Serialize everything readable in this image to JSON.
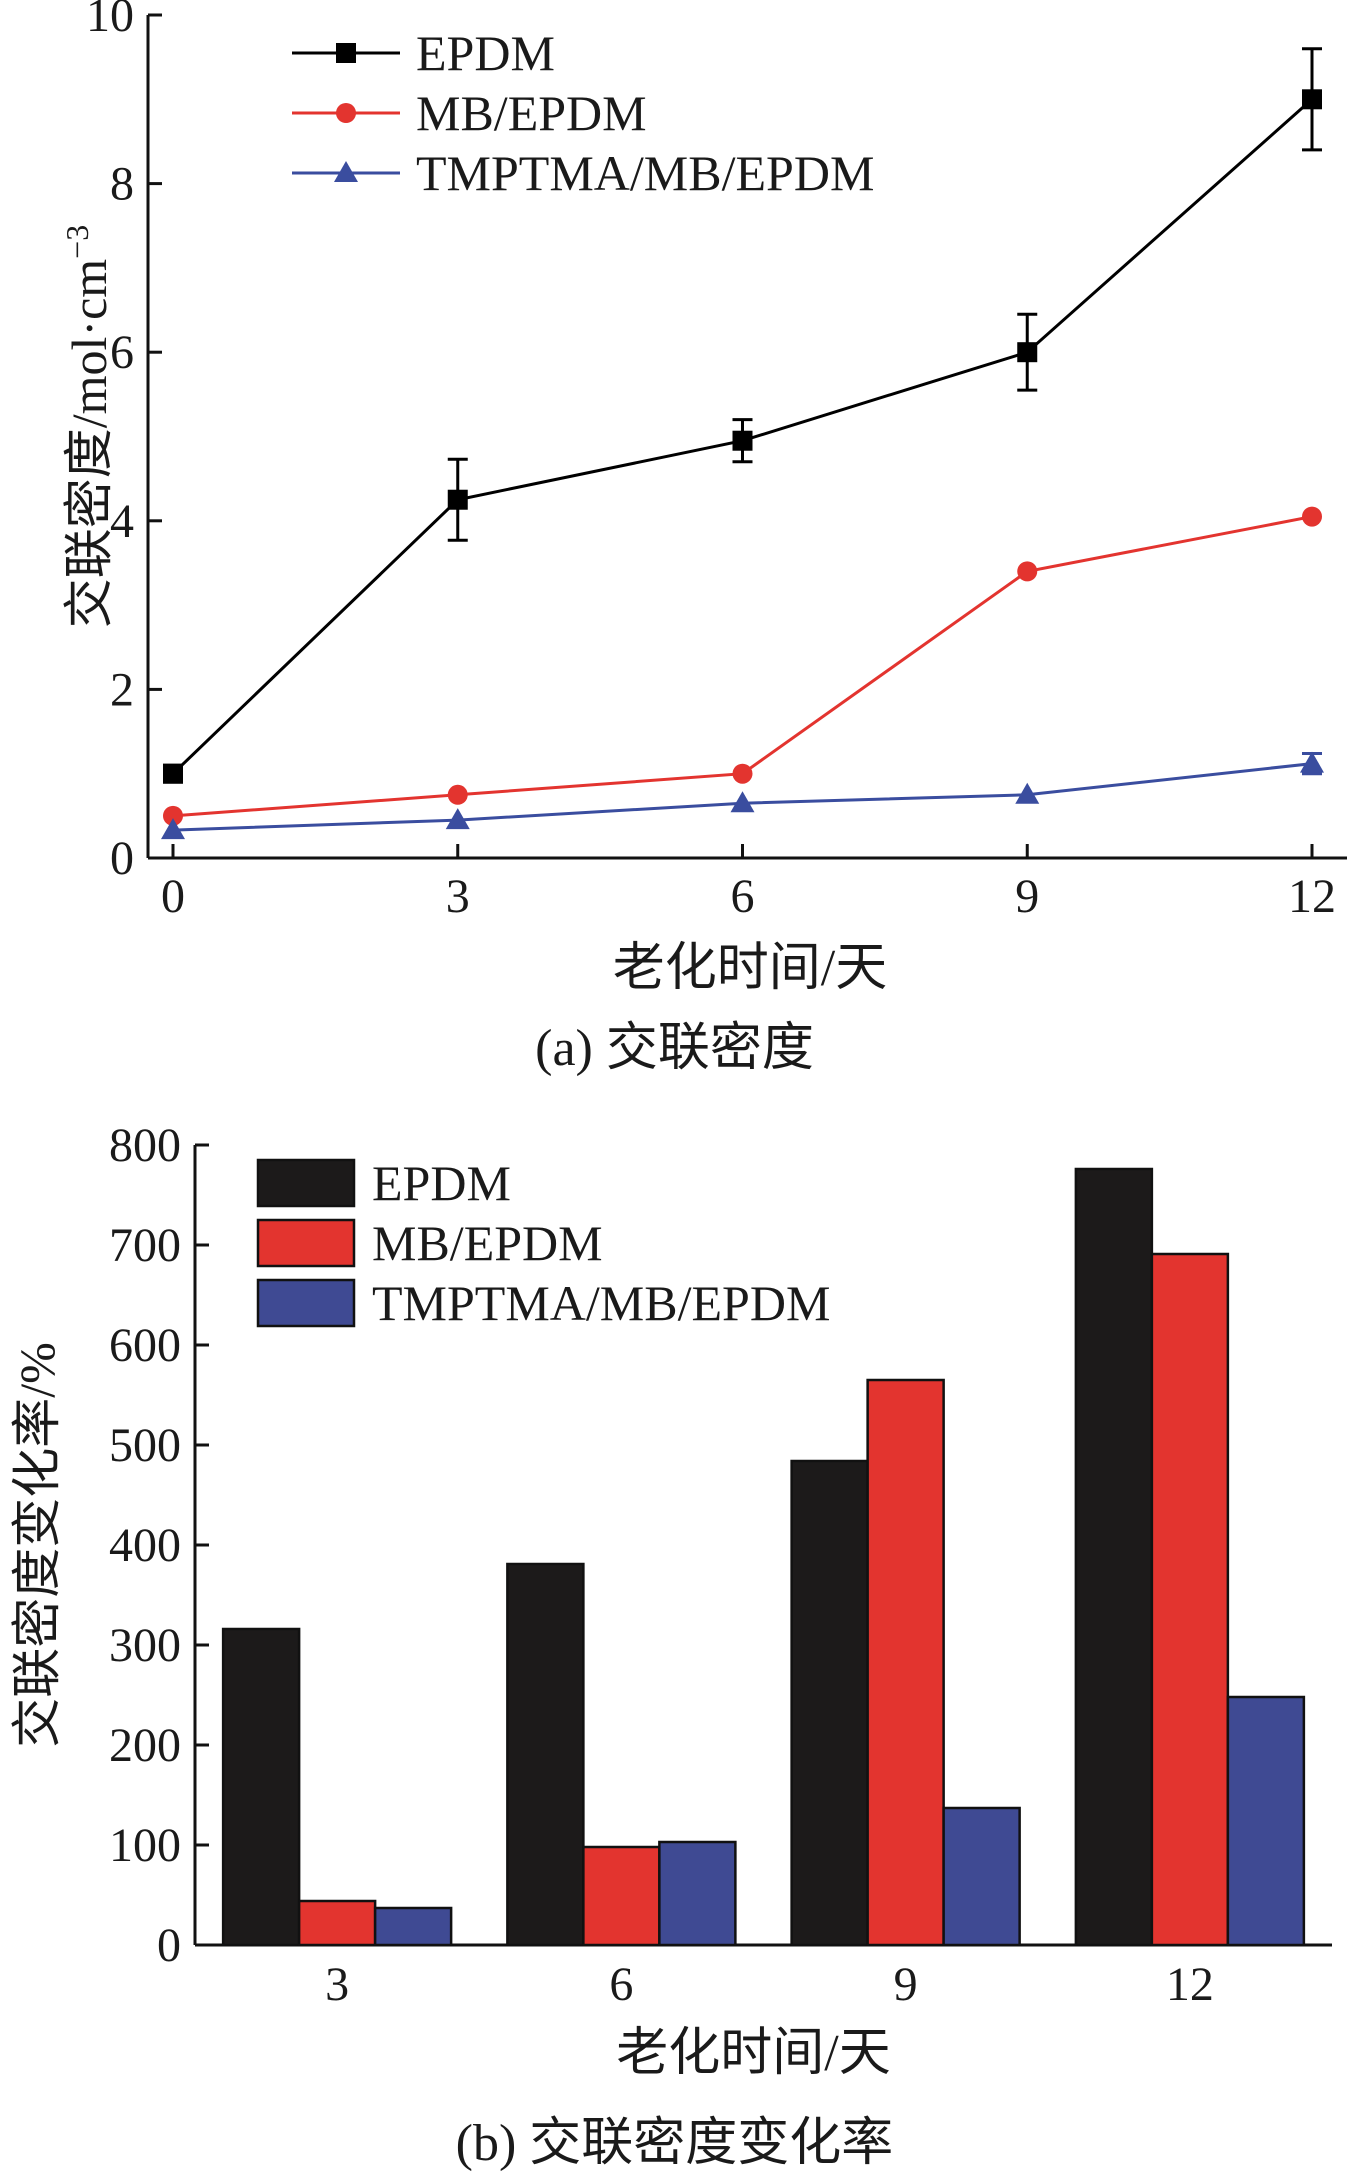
{
  "chart_data": [
    {
      "type": "line",
      "caption": "(a) 交联密度",
      "xlabel": "老化时间/天",
      "ylabel": "交联密度/mol·cm",
      "ylabel_sup": "−3",
      "x": [
        0,
        3,
        6,
        9,
        12
      ],
      "xticks": [
        "0",
        "3",
        "6",
        "9",
        "12"
      ],
      "yticks": [
        "0",
        "2",
        "4",
        "6",
        "8",
        "10"
      ],
      "xlim": [
        0,
        12
      ],
      "ylim": [
        0,
        10
      ],
      "legend_position": "top-left",
      "grid": false,
      "series": [
        {
          "name": "EPDM",
          "marker": "square",
          "color": "#000000",
          "values": [
            1.0,
            4.25,
            4.95,
            6.0,
            9.0
          ],
          "errors": [
            0.1,
            0.48,
            0.25,
            0.45,
            0.6
          ]
        },
        {
          "name": "MB/EPDM",
          "marker": "circle",
          "color": "#e3342f",
          "values": [
            0.5,
            0.75,
            1.0,
            3.4,
            4.05
          ],
          "errors": [
            0.05,
            0.05,
            0.05,
            0.05,
            0.05
          ]
        },
        {
          "name": "TMPTMA/MB/EPDM",
          "marker": "triangle",
          "color": "#3a4d9f",
          "values": [
            0.33,
            0.45,
            0.65,
            0.75,
            1.12
          ],
          "errors": [
            0.03,
            0.03,
            0.03,
            0.03,
            0.12
          ]
        }
      ]
    },
    {
      "type": "bar",
      "caption": "(b) 交联密度变化率",
      "xlabel": "老化时间/天",
      "ylabel": "交联密度变化率/%",
      "categories": [
        "3",
        "6",
        "9",
        "12"
      ],
      "yticks": [
        "0",
        "100",
        "200",
        "300",
        "400",
        "500",
        "600",
        "700",
        "800"
      ],
      "ylim": [
        0,
        800
      ],
      "legend_position": "top-left",
      "grid": false,
      "series": [
        {
          "name": "EPDM",
          "color": "#1c1a1a",
          "values": [
            316,
            381,
            484,
            776
          ]
        },
        {
          "name": "MB/EPDM",
          "color": "#e3342f",
          "values": [
            44,
            98,
            565,
            691
          ]
        },
        {
          "name": "TMPTMA/MB/EPDM",
          "color": "#3f4a93",
          "values": [
            37,
            103,
            137,
            248
          ]
        }
      ]
    }
  ]
}
